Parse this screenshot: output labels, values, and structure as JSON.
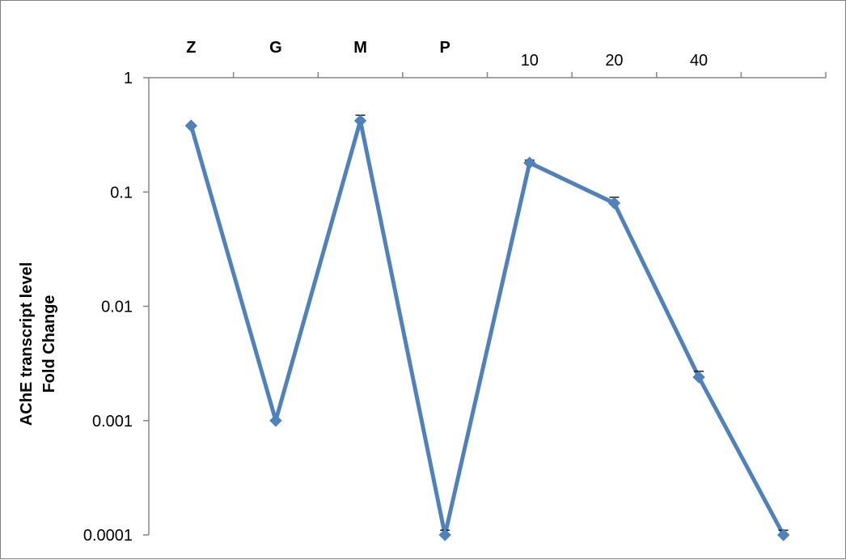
{
  "chart_data": {
    "type": "line",
    "categories": [
      "Z",
      "G",
      "M",
      "P",
      "10",
      "20",
      "40",
      ""
    ],
    "bold_categories": [
      "Z",
      "G",
      "M",
      "P"
    ],
    "series": [
      {
        "values": [
          0.38,
          0.001,
          0.42,
          0.0001,
          0.18,
          0.08,
          0.0024,
          0.0001
        ],
        "error_upper": [
          0.38,
          0.001,
          0.47,
          0.00011,
          0.19,
          0.09,
          0.0027,
          0.00011
        ],
        "color": "#4f81bd"
      }
    ],
    "y_axis": {
      "scale": "log",
      "ylim": [
        0.0001,
        1
      ],
      "tick_labels": [
        "1",
        "0.1",
        "0.01",
        "0.001",
        "0.0001"
      ]
    },
    "x_axis_position": "top",
    "ylabel": [
      "AChE transcript level",
      "Fold Change"
    ],
    "grid": false,
    "legend": "none"
  }
}
